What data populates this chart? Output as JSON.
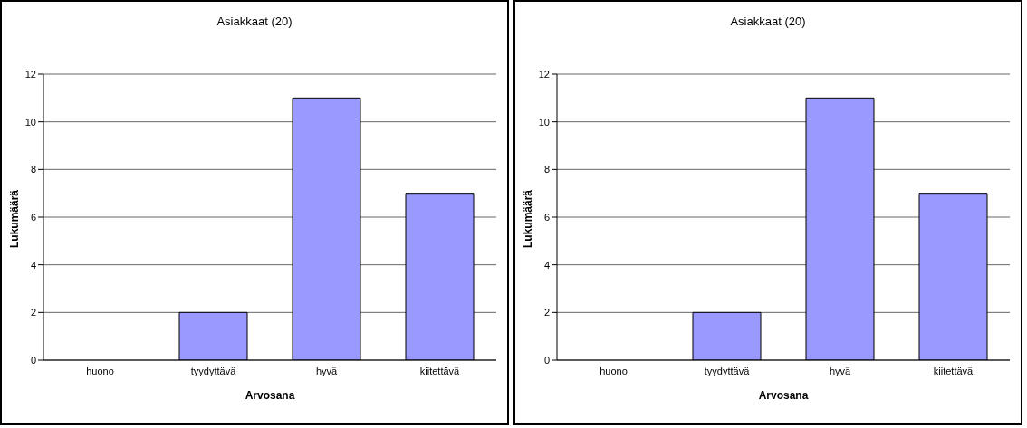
{
  "chart_data": [
    {
      "type": "bar",
      "title": "Asiakkaat (20)",
      "xlabel": "Arvosana",
      "ylabel": "Lukumäärä",
      "categories": [
        "huono",
        "tyydyttävä",
        "hyvä",
        "kiitettävä"
      ],
      "values": [
        0,
        2,
        11,
        7
      ],
      "color": "#9999ff",
      "ylim": [
        0,
        12
      ],
      "yticks": [
        0,
        2,
        4,
        6,
        8,
        10,
        12
      ],
      "grid": "y"
    },
    {
      "type": "bar",
      "title": "Asiakkaat (20)",
      "xlabel": "Arvosana",
      "ylabel": "Lukumäärä",
      "categories": [
        "huono",
        "tyydyttävä",
        "hyvä",
        "kiitettävä"
      ],
      "values": [
        0,
        2,
        11,
        7
      ],
      "color": "#9999ff",
      "ylim": [
        0,
        12
      ],
      "yticks": [
        0,
        2,
        4,
        6,
        8,
        10,
        12
      ],
      "grid": "y"
    }
  ]
}
